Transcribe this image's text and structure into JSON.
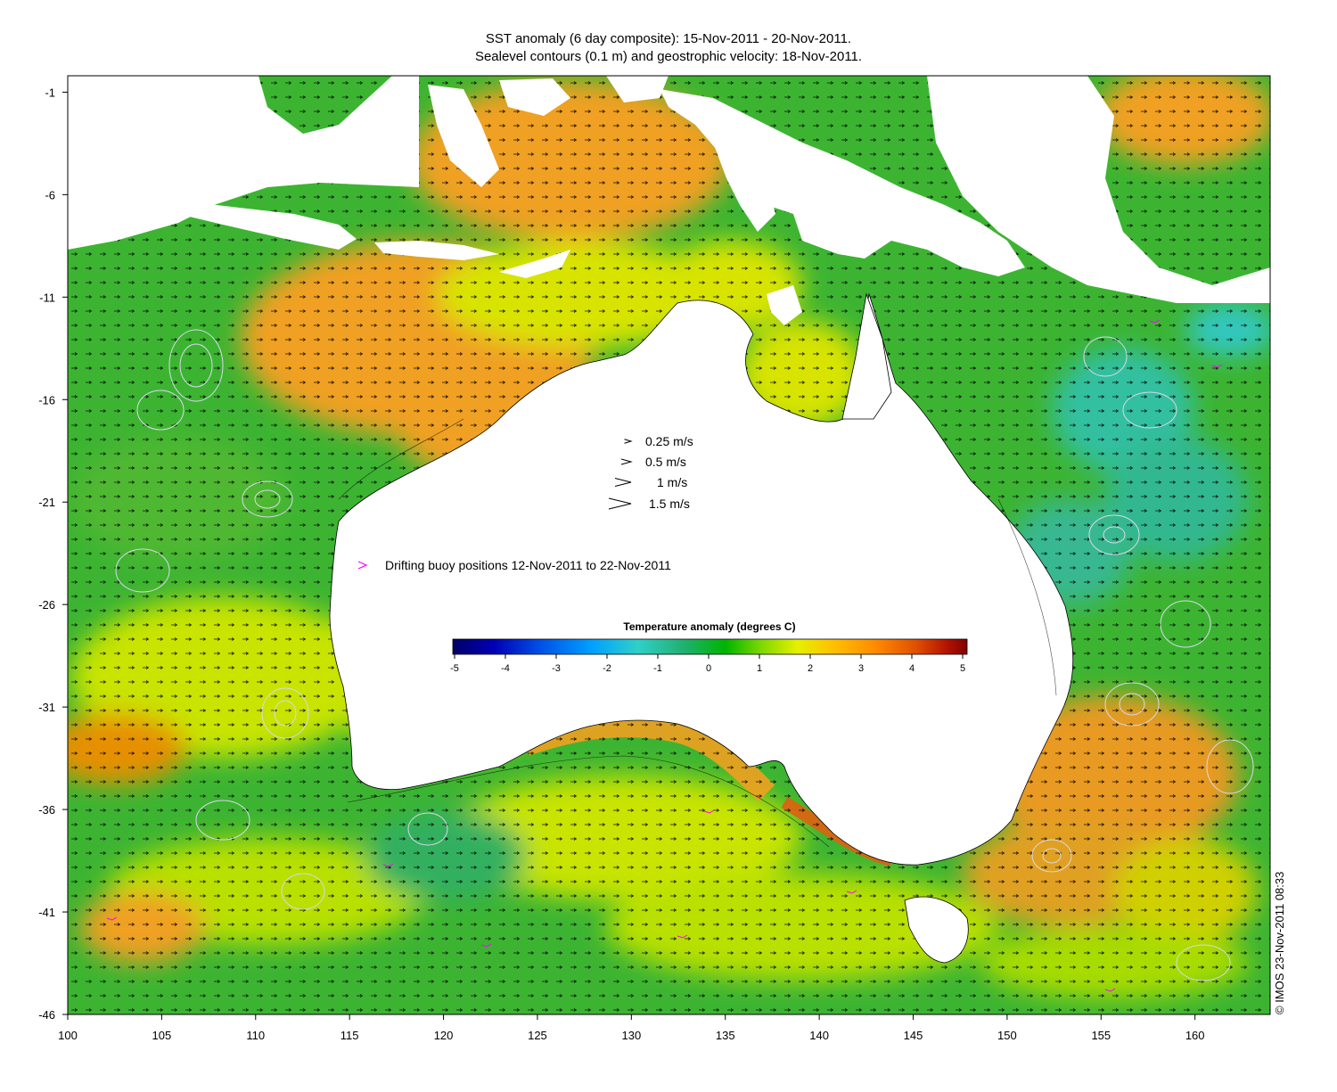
{
  "title_line1": "SST anomaly (6 day composite): 15-Nov-2011 - 20-Nov-2011.",
  "title_line2": "Sealevel contours (0.1 m) and geostrophic velocity: 18-Nov-2011.",
  "axes": {
    "x_ticks": [
      "100",
      "105",
      "110",
      "115",
      "120",
      "125",
      "130",
      "135",
      "140",
      "145",
      "150",
      "155",
      "160"
    ],
    "y_ticks": [
      "-1",
      "-6",
      "-11",
      "-16",
      "-21",
      "-26",
      "-31",
      "-36",
      "-41",
      "-46"
    ],
    "x_range": [
      100,
      164
    ],
    "y_range": [
      -46,
      -0.2
    ]
  },
  "velocity_legend": [
    {
      "value": 0.25,
      "label": "0.25 m/s"
    },
    {
      "value": 0.5,
      "label": "0.5 m/s"
    },
    {
      "value": 1,
      "label": "1 m/s"
    },
    {
      "value": 1.5,
      "label": "1.5 m/s"
    }
  ],
  "buoy_legend": {
    "label": "Drifting buoy positions 12-Nov-2011 to 22-Nov-2011",
    "color": "#ff00ff"
  },
  "colorbar": {
    "title": "Temperature anomaly (degrees C)",
    "ticks": [
      "-5",
      "-4",
      "-3",
      "-2",
      "-1",
      "0",
      "1",
      "2",
      "3",
      "4",
      "5"
    ],
    "range": [
      -5,
      5
    ],
    "colors": [
      "#000066",
      "#0000b4",
      "#0050e6",
      "#00a0ff",
      "#30d0c8",
      "#20b070",
      "#00b400",
      "#7ed800",
      "#e6f000",
      "#ffc000",
      "#ff8c00",
      "#e05000",
      "#b41400",
      "#800000"
    ]
  },
  "credit": "© IMOS 23-Nov-2011 08:33",
  "colors": {
    "ocean_green": "#38b430",
    "ocean_yellow": "#c8e600",
    "ocean_orange": "#f0a020",
    "land": "#ffffff",
    "contour": "#d8d8e8",
    "vector": "#000000"
  }
}
